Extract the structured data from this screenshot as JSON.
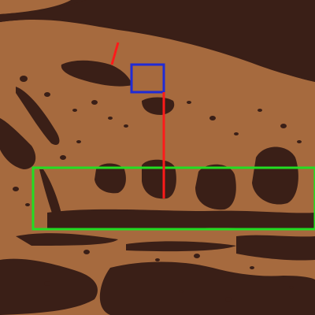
{
  "image": {
    "colors": {
      "background": "#3a1f17",
      "tissue": "#a66a3e"
    }
  },
  "annotations": [
    {
      "kind": "box",
      "color": "#22dd22"
    },
    {
      "kind": "box",
      "color": "#1f2bd6"
    },
    {
      "kind": "line",
      "color": "#ff1a1a"
    },
    {
      "kind": "line",
      "color": "#ff1a1a"
    }
  ]
}
